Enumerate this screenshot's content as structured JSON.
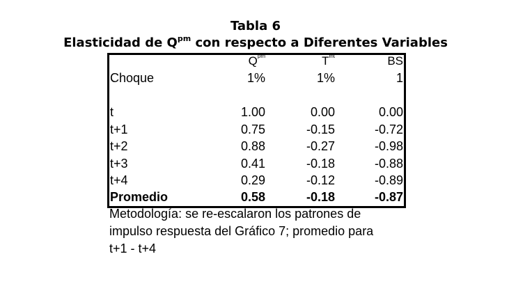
{
  "title": {
    "line1": "Tabla 6",
    "line2_pre": "Elasticidad de Q",
    "line2_sup": "pm",
    "line2_post": " con respecto a Diferentes Variables"
  },
  "table": {
    "headers": [
      {
        "base": "Q",
        "sup": "pm"
      },
      {
        "base": "T",
        "sup": "int"
      },
      {
        "base": "BS",
        "sup": ""
      }
    ],
    "shock_row": {
      "label": "Choque",
      "values": [
        "1%",
        "1%",
        "1"
      ]
    },
    "rows": [
      {
        "label": "t",
        "values": [
          "1.00",
          "0.00",
          "0.00"
        ]
      },
      {
        "label": "t+1",
        "values": [
          "0.75",
          "-0.15",
          "-0.72"
        ]
      },
      {
        "label": "t+2",
        "values": [
          "0.88",
          "-0.27",
          "-0.98"
        ]
      },
      {
        "label": "t+3",
        "values": [
          "0.41",
          "-0.18",
          "-0.88"
        ]
      },
      {
        "label": "t+4",
        "values": [
          "0.29",
          "-0.12",
          "-0.89"
        ]
      }
    ],
    "average_row": {
      "label": "Promedio",
      "values": [
        "0.58",
        "-0.18",
        "-0.87"
      ]
    }
  },
  "note": {
    "lines": [
      "Metodología: se re-escalaron los patrones de",
      "impulso respuesta del Gráfico 7; promedio para",
      "t+1 - t+4"
    ]
  }
}
